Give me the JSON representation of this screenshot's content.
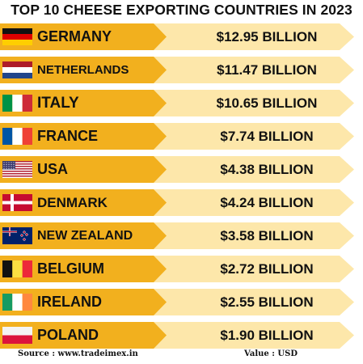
{
  "chart_data": {
    "type": "bar",
    "title": "TOP 10 CHEESE EXPORTING COUNTRIES IN 2023",
    "categories": [
      "GERMANY",
      "NETHERLANDS",
      "ITALY",
      "FRANCE",
      "USA",
      "DENMARK",
      "NEW ZEALAND",
      "BELGIUM",
      "IRELAND",
      "POLAND"
    ],
    "value_labels": [
      "$12.95 BILLION",
      "$11.47 BILLION",
      "$10.65 BILLION",
      "$7.74 BILLION",
      "$4.38 BILLION",
      "$4.24 BILLION",
      "$3.58 BILLION",
      "$2.72 BILLION",
      "$2.55 BILLION",
      "$1.90 BILLION"
    ],
    "values": [
      12.95,
      11.47,
      10.65,
      7.74,
      4.38,
      4.24,
      3.58,
      2.72,
      2.55,
      1.9
    ],
    "flags": [
      "germany-flag-icon",
      "netherlands-flag-icon",
      "italy-flag-icon",
      "france-flag-icon",
      "usa-flag-icon",
      "denmark-flag-icon",
      "new-zealand-flag-icon",
      "belgium-flag-icon",
      "ireland-flag-icon",
      "poland-flag-icon"
    ],
    "colors": {
      "dark_band": "#f2b01e",
      "light_band": "#fde7aa",
      "text": "#111111"
    }
  },
  "footer": {
    "source": "Source : www.tradeimex.in",
    "unit": "Value : USD"
  }
}
